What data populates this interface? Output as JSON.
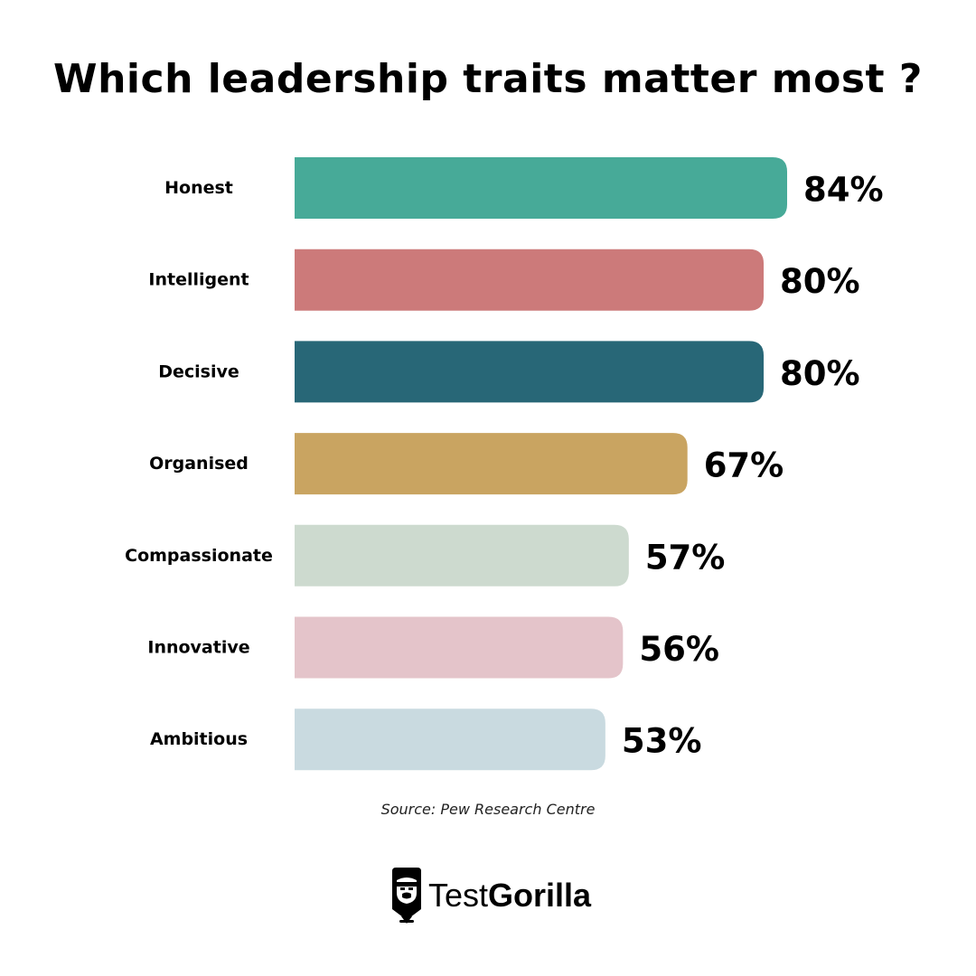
{
  "chart_data": {
    "type": "bar",
    "orientation": "horizontal",
    "title": "Which leadership traits matter most ?",
    "categories": [
      "Honest",
      "Intelligent",
      "Decisive",
      "Organised",
      "Compassionate",
      "Innovative",
      "Ambitious"
    ],
    "values": [
      84,
      80,
      80,
      67,
      57,
      56,
      53
    ],
    "value_labels": [
      "84%",
      "80%",
      "80%",
      "67%",
      "57%",
      "56%",
      "53%"
    ],
    "colors": [
      "#47AA98",
      "#CC7A7A",
      "#286777",
      "#C9A461",
      "#CDDACF",
      "#E4C4CA",
      "#C9DAE0"
    ],
    "unit": "%",
    "xlim": [
      0,
      100
    ],
    "grid": false,
    "legend": "none",
    "source": "Source: Pew Research Centre"
  },
  "brand": {
    "name_light": "Test",
    "name_bold": "Gorilla",
    "icon": "gorilla-pencil-icon"
  }
}
